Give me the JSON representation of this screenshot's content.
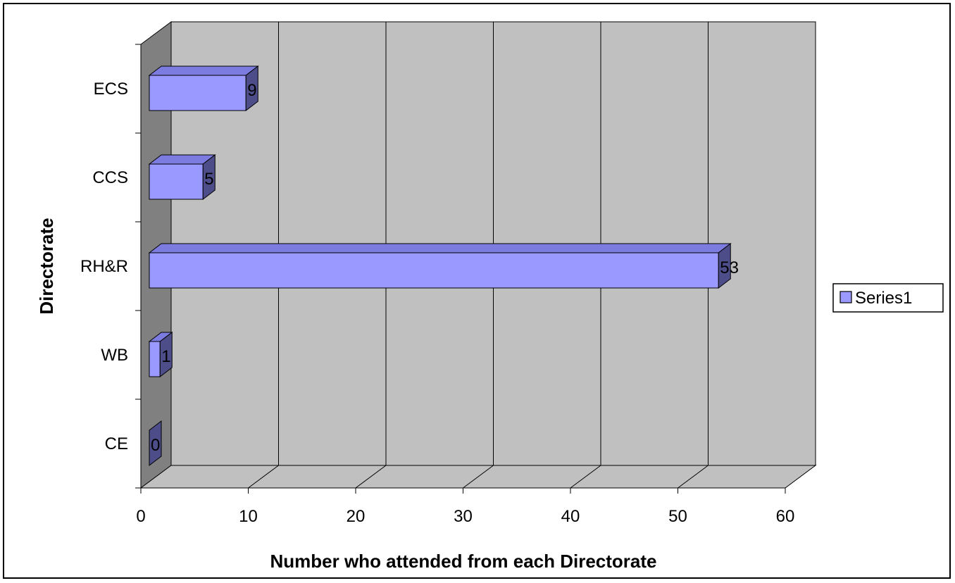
{
  "chart_data": {
    "type": "bar",
    "orientation": "horizontal",
    "three_d": true,
    "categories": [
      "CE",
      "WB",
      "RH&R",
      "CCS",
      "ECS"
    ],
    "series": [
      {
        "name": "Series1",
        "values": [
          0,
          1,
          53,
          5,
          9
        ]
      }
    ],
    "data_labels": [
      "0",
      "1",
      "53",
      "5",
      "9"
    ],
    "xlabel": "Number who attended from each Directorate",
    "ylabel": "Directorate",
    "xlim": [
      0,
      60
    ],
    "x_ticks": [
      "0",
      "10",
      "20",
      "30",
      "40",
      "50",
      "60"
    ],
    "grid": true,
    "legend": "right",
    "colors": {
      "bar_front": "#9999ff",
      "bar_side": "#4d4d8a",
      "bar_top": "#7b7be0",
      "wall": "#c0c0c0",
      "side_wall": "#808080",
      "floor": "#c0c0c0"
    }
  }
}
